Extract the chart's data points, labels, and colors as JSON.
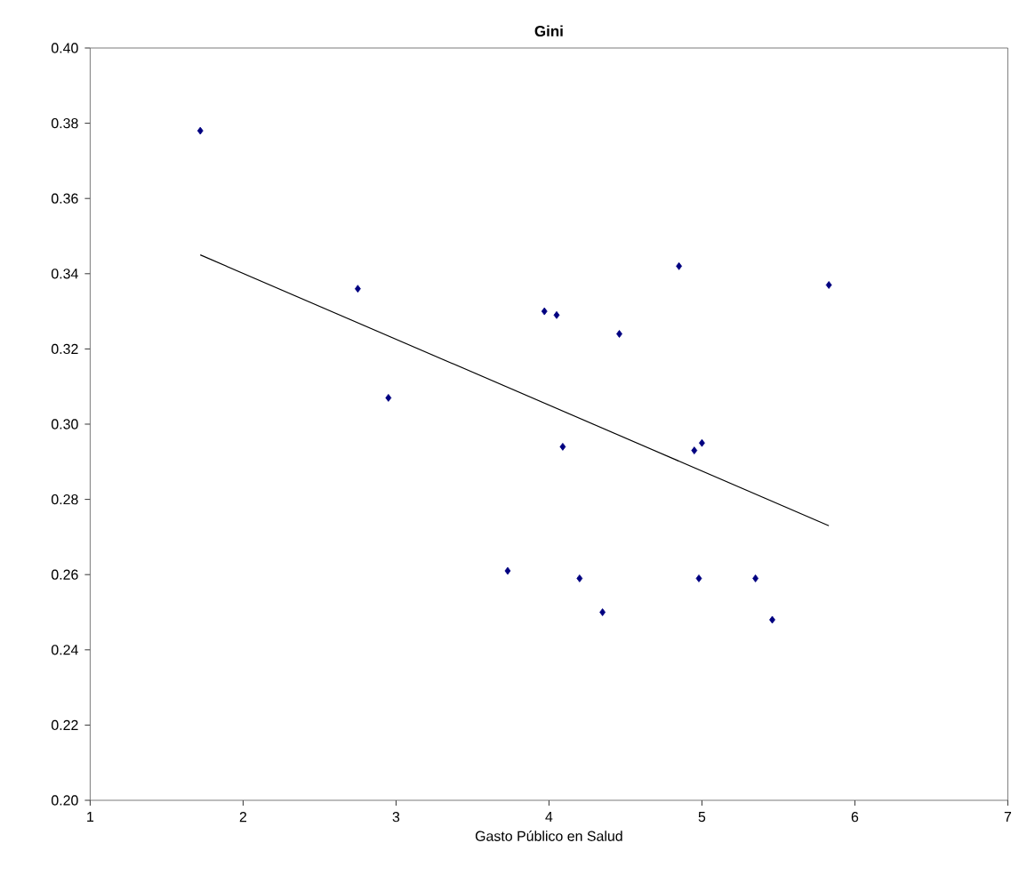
{
  "chart_data": {
    "type": "scatter",
    "title": "Gini",
    "xlabel": "Gasto Público en Salud",
    "xlim": [
      1,
      7
    ],
    "xticks": [
      1,
      2,
      3,
      4,
      5,
      6,
      7
    ],
    "ylim": [
      0.2,
      0.4
    ],
    "yticks": [
      {
        "value": 0.2,
        "label": "0.20"
      },
      {
        "value": 0.22,
        "label": "0.22"
      },
      {
        "value": 0.24,
        "label": "0.24"
      },
      {
        "value": 0.26,
        "label": "0.26"
      },
      {
        "value": 0.28,
        "label": "0.28"
      },
      {
        "value": 0.3,
        "label": "0.30"
      },
      {
        "value": 0.32,
        "label": "0.32"
      },
      {
        "value": 0.34,
        "label": "0.34"
      },
      {
        "value": 0.36,
        "label": "0.36"
      },
      {
        "value": 0.38,
        "label": "0.38"
      },
      {
        "value": 0.4,
        "label": "0.40"
      }
    ],
    "marker": "diamond",
    "series": [
      {
        "color": "#000080",
        "x": [
          1.72,
          2.75,
          2.95,
          3.73,
          3.97,
          4.05,
          4.09,
          4.46,
          4.85,
          4.2,
          4.35,
          4.95,
          5.0,
          4.98,
          5.35,
          5.46,
          5.83
        ],
        "values": [
          0.378,
          0.336,
          0.307,
          0.261,
          0.33,
          0.329,
          0.294,
          0.324,
          0.342,
          0.259,
          0.25,
          0.293,
          0.295,
          0.259,
          0.259,
          0.248,
          0.337
        ]
      },
      {
        "type": "line",
        "color": "#000000",
        "marker": "none",
        "x": [
          1.72,
          5.83
        ],
        "values": [
          0.345,
          0.273
        ]
      }
    ]
  }
}
